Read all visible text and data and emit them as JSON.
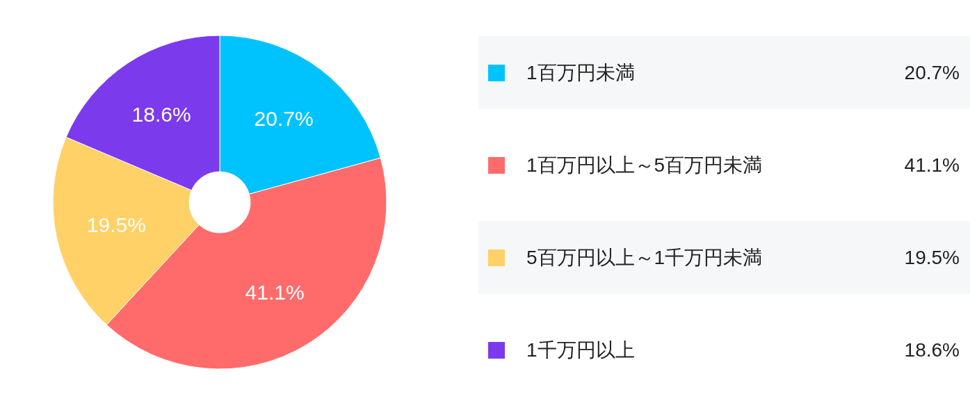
{
  "chart_data": {
    "type": "donut",
    "categories": [
      "1百万円未満",
      "1百万円以上～5百万円未満",
      "5百万円以上～1千万円未満",
      "1千万円以上"
    ],
    "values": [
      20.7,
      41.1,
      19.5,
      18.6
    ],
    "colors": [
      "#00c3fd",
      "#ff6b6b",
      "#ffd166",
      "#7c3aed"
    ],
    "value_labels": [
      "20.7%",
      "41.1%",
      "19.5%",
      "18.6%"
    ],
    "legend": "right"
  }
}
